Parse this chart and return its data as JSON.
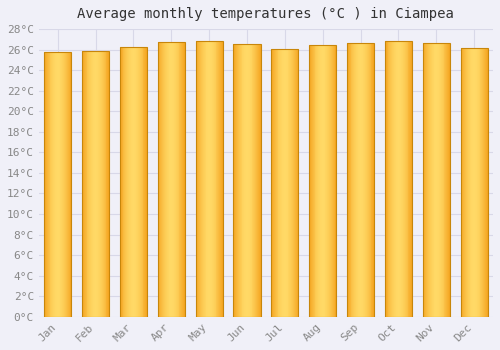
{
  "title": "Average monthly temperatures (°C ) in Ciampea",
  "months": [
    "Jan",
    "Feb",
    "Mar",
    "Apr",
    "May",
    "Jun",
    "Jul",
    "Aug",
    "Sep",
    "Oct",
    "Nov",
    "Dec"
  ],
  "temperatures": [
    25.8,
    25.9,
    26.3,
    26.7,
    26.8,
    26.5,
    26.1,
    26.4,
    26.6,
    26.8,
    26.6,
    26.2
  ],
  "ylim": [
    0,
    28
  ],
  "yticks": [
    0,
    2,
    4,
    6,
    8,
    10,
    12,
    14,
    16,
    18,
    20,
    22,
    24,
    26,
    28
  ],
  "bar_color_left": "#F5A623",
  "bar_color_center": "#FFD966",
  "bar_color_right": "#F5A623",
  "bar_edge_color": "#C8860A",
  "background_color": "#F0F0F8",
  "plot_bg_color": "#F0F0F8",
  "grid_color": "#D8D8E8",
  "title_fontsize": 10,
  "tick_fontsize": 8,
  "tick_color": "#888888",
  "title_color": "#333333",
  "font_family": "monospace",
  "bar_width": 0.72
}
